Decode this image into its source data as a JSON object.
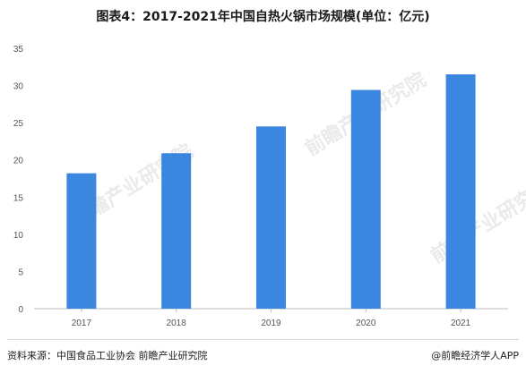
{
  "chart_data": {
    "type": "bar",
    "title": "图表4：2017-2021年中国自热火锅市场规模(单位：亿元)",
    "categories": [
      "2017",
      "2018",
      "2019",
      "2020",
      "2021"
    ],
    "values": [
      18.2,
      20.9,
      24.5,
      29.4,
      31.5
    ],
    "ylim": [
      0,
      35
    ],
    "yticks": [
      0,
      5,
      10,
      15,
      20,
      25,
      30,
      35
    ],
    "xlabel": "",
    "ylabel": "",
    "grid": false,
    "bar_color": "#3b87e0"
  },
  "footer": {
    "source": "资料来源：中国食品工业协会 前瞻产业研究院",
    "credit": "@前瞻经济学人APP"
  },
  "watermark": {
    "text": "前瞻产业研究院"
  }
}
